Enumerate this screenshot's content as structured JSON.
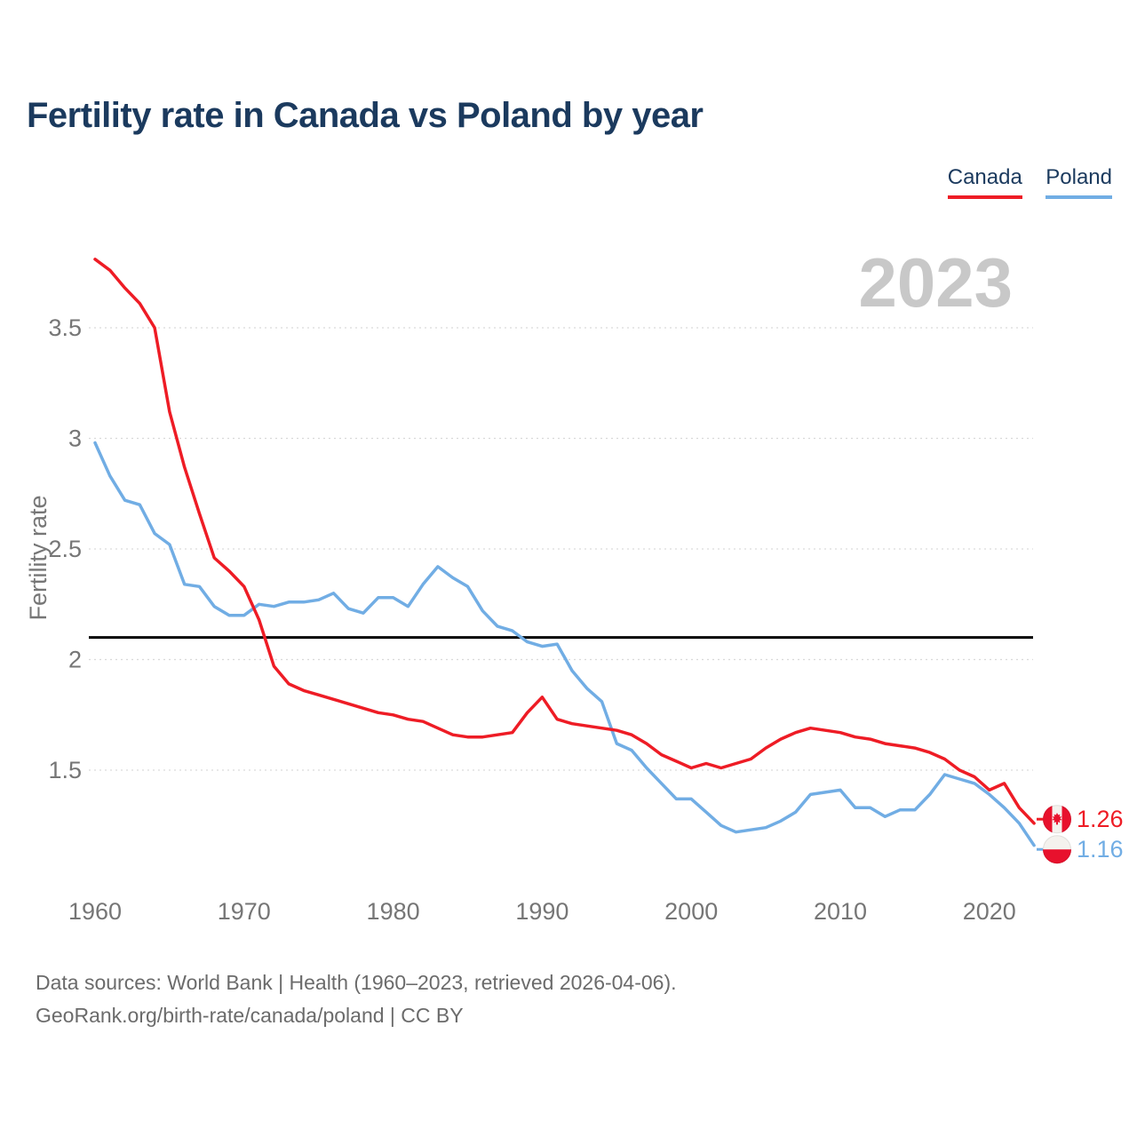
{
  "page": {
    "title": "Fertility rate in Canada vs Poland by year",
    "watermark": "2023",
    "footer_line1": "Data sources: World Bank | Health (1960–2023, retrieved 2026-04-06).",
    "footer_line2": "GeoRank.org/birth-rate/canada/poland | CC BY"
  },
  "legend": [
    {
      "label": "Canada",
      "color": "#ee1c25"
    },
    {
      "label": "Poland",
      "color": "#71ade4"
    }
  ],
  "colors": {
    "canada": "#ee1c25",
    "poland": "#71ade4",
    "replacement_line": "#000000",
    "title": "#1b3a5e",
    "axis_text": "#767676",
    "watermark": "#c8c8c8",
    "footer_text": "#6b6b6b",
    "gridline": "#d9d9d9"
  },
  "chart_data": {
    "type": "line",
    "title": "Fertility rate in Canada vs Poland by year",
    "xlabel": "",
    "ylabel": "Fertility rate",
    "watermark": "2023",
    "grid": "horizontal-dotted",
    "legend_position": "top-right",
    "x_ticks": [
      1960,
      1970,
      1980,
      1990,
      2000,
      2010,
      2020
    ],
    "y_ticks": [
      1.5,
      2,
      2.5,
      3,
      3.5
    ],
    "xlim": [
      1960,
      2023
    ],
    "ylim": [
      1.0,
      3.95
    ],
    "reference_line": {
      "value": 2.1,
      "color": "#000000"
    },
    "x": [
      1960,
      1961,
      1962,
      1963,
      1964,
      1965,
      1966,
      1967,
      1968,
      1969,
      1970,
      1971,
      1972,
      1973,
      1974,
      1975,
      1976,
      1977,
      1978,
      1979,
      1980,
      1981,
      1982,
      1983,
      1984,
      1985,
      1986,
      1987,
      1988,
      1989,
      1990,
      1991,
      1992,
      1993,
      1994,
      1995,
      1996,
      1997,
      1998,
      1999,
      2000,
      2001,
      2002,
      2003,
      2004,
      2005,
      2006,
      2007,
      2008,
      2009,
      2010,
      2011,
      2012,
      2013,
      2014,
      2015,
      2016,
      2017,
      2018,
      2019,
      2020,
      2021,
      2022,
      2023
    ],
    "series": [
      {
        "name": "Poland",
        "color": "#71ade4",
        "flag": "poland",
        "end_label": "1.16",
        "values": [
          2.98,
          2.83,
          2.72,
          2.7,
          2.57,
          2.52,
          2.34,
          2.33,
          2.24,
          2.2,
          2.2,
          2.25,
          2.24,
          2.26,
          2.26,
          2.27,
          2.3,
          2.23,
          2.21,
          2.28,
          2.28,
          2.24,
          2.34,
          2.42,
          2.37,
          2.33,
          2.22,
          2.15,
          2.13,
          2.08,
          2.06,
          2.07,
          1.95,
          1.87,
          1.81,
          1.62,
          1.59,
          1.51,
          1.44,
          1.37,
          1.37,
          1.31,
          1.25,
          1.22,
          1.23,
          1.24,
          1.27,
          1.31,
          1.39,
          1.4,
          1.41,
          1.33,
          1.33,
          1.29,
          1.32,
          1.32,
          1.39,
          1.48,
          1.46,
          1.44,
          1.39,
          1.33,
          1.26,
          1.16
        ]
      },
      {
        "name": "Canada",
        "color": "#ee1c25",
        "flag": "canada",
        "end_label": "1.26",
        "values": [
          3.81,
          3.76,
          3.68,
          3.61,
          3.5,
          3.12,
          2.87,
          2.66,
          2.46,
          2.4,
          2.33,
          2.18,
          1.97,
          1.89,
          1.86,
          1.84,
          1.82,
          1.8,
          1.78,
          1.76,
          1.75,
          1.73,
          1.72,
          1.69,
          1.66,
          1.65,
          1.65,
          1.66,
          1.67,
          1.76,
          1.83,
          1.73,
          1.71,
          1.7,
          1.69,
          1.68,
          1.66,
          1.62,
          1.57,
          1.54,
          1.51,
          1.53,
          1.51,
          1.53,
          1.55,
          1.6,
          1.64,
          1.67,
          1.69,
          1.68,
          1.67,
          1.65,
          1.64,
          1.62,
          1.61,
          1.6,
          1.58,
          1.55,
          1.5,
          1.47,
          1.41,
          1.44,
          1.33,
          1.26
        ]
      }
    ]
  }
}
